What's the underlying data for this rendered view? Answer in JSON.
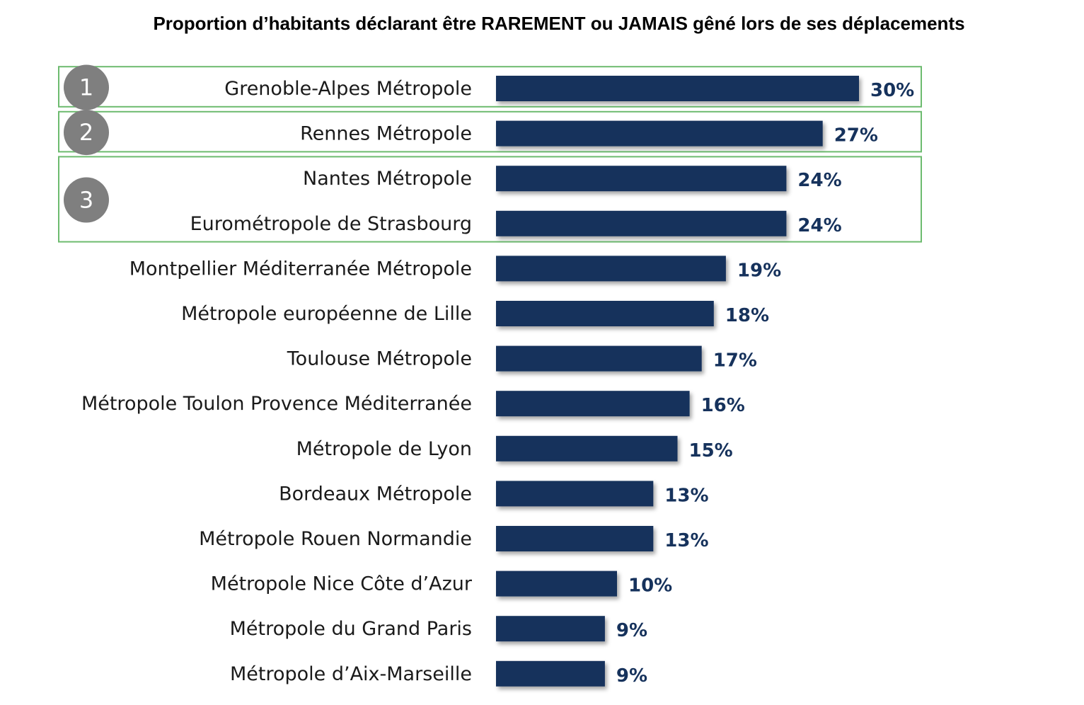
{
  "chart_data": {
    "type": "bar",
    "orientation": "horizontal",
    "title": "Proportion d’habitants déclarant être RAREMENT ou JAMAIS gêné lors de ses déplacements",
    "xlabel": "",
    "ylabel": "",
    "value_suffix": "%",
    "xlim": [
      0,
      30
    ],
    "grid": false,
    "legend": "none",
    "categories": [
      "Grenoble-Alpes Métropole",
      "Rennes Métropole",
      "Nantes Métropole",
      "Eurométropole de Strasbourg",
      "Montpellier Méditerranée Métropole",
      "Métropole européenne de Lille",
      "Toulouse Métropole",
      "Métropole Toulon Provence Méditerranée",
      "Métropole de Lyon",
      "Bordeaux Métropole",
      "Métropole Rouen Normandie",
      "Métropole Nice Côte d’Azur",
      "Métropole du Grand Paris",
      "Métropole d’Aix-Marseille"
    ],
    "values": [
      30,
      27,
      24,
      24,
      19,
      18,
      17,
      16,
      15,
      13,
      13,
      10,
      9,
      9
    ],
    "value_labels": [
      "30%",
      "27%",
      "24%",
      "24%",
      "19%",
      "18%",
      "17%",
      "16%",
      "15%",
      "13%",
      "13%",
      "10%",
      "9%",
      "9%"
    ],
    "rank_groups": [
      {
        "rank": "1",
        "categories": [
          "Grenoble-Alpes Métropole"
        ]
      },
      {
        "rank": "2",
        "categories": [
          "Rennes Métropole"
        ]
      },
      {
        "rank": "3",
        "categories": [
          "Nantes Métropole",
          "Eurométropole de Strasbourg"
        ]
      }
    ]
  },
  "colors": {
    "bar": "#16325c",
    "value_text": "#16325c",
    "rank_box_border": "#6dbb6f",
    "rank_badge": "#7f7f7f",
    "title_text": "#000000",
    "category_text": "#1a1a1a"
  }
}
